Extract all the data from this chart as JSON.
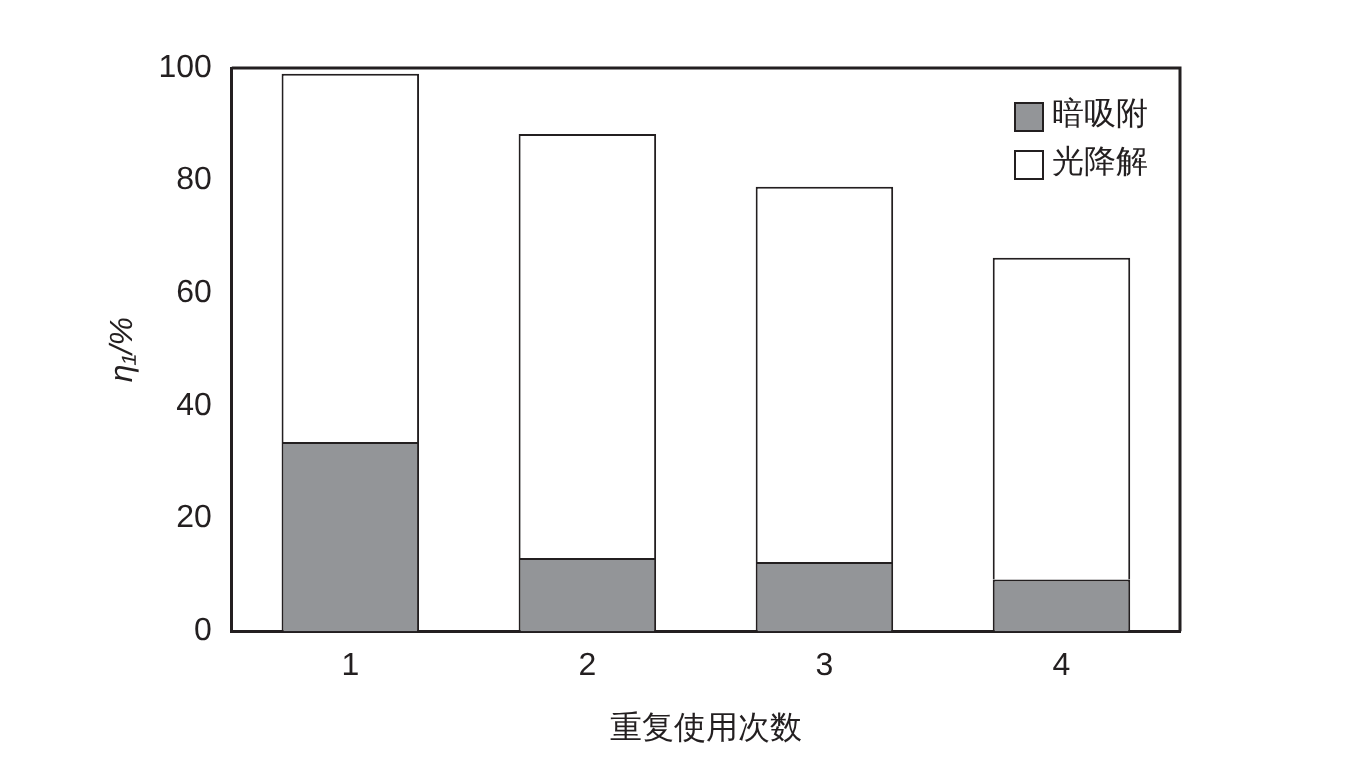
{
  "chart_data": {
    "type": "bar",
    "xlabel": "重复使用次数",
    "ylabel": "η₁/%",
    "categories": [
      "1",
      "2",
      "3",
      "4"
    ],
    "stacked": true,
    "ylim": [
      0,
      100
    ],
    "yticks": [
      0,
      20,
      40,
      60,
      80,
      100
    ],
    "grid": false,
    "legend": "top right",
    "series": [
      {
        "name": "暗吸附",
        "color": "#939598",
        "values": [
          33.6,
          13.0,
          12.3,
          9.2
        ]
      },
      {
        "name": "光降解",
        "color": "#ffffff",
        "values": [
          65.4,
          75.3,
          66.6,
          57.1
        ]
      }
    ]
  }
}
